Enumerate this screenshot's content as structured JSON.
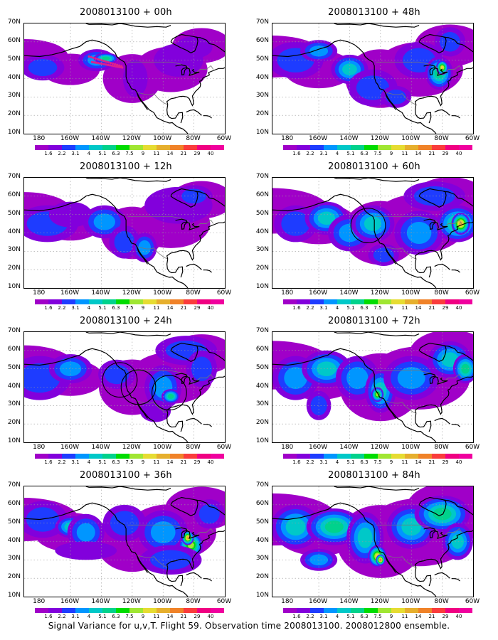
{
  "panels": [
    {
      "title": "2008013100 + 00h",
      "intensity": 0.15,
      "circles": [],
      "dots": true
    },
    {
      "title": "2008013100 + 12h",
      "intensity": 0.22,
      "circles": [],
      "dots": false
    },
    {
      "title": "2008013100 + 24h",
      "intensity": 0.28,
      "circles": [
        "west-coast-1",
        "west-coast-2",
        "east"
      ],
      "dots": false
    },
    {
      "title": "2008013100 + 36h",
      "intensity": 0.38,
      "circles": [],
      "dots": false
    },
    {
      "title": "2008013100 + 48h",
      "intensity": 0.34,
      "circles": [],
      "dots": false
    },
    {
      "title": "2008013100 + 60h",
      "intensity": 0.44,
      "circles": [
        "west-coast-1"
      ],
      "dots": false
    },
    {
      "title": "2008013100 + 72h",
      "intensity": 0.52,
      "circles": [],
      "dots": false
    },
    {
      "title": "2008013100 + 84h",
      "intensity": 0.62,
      "circles": [],
      "dots": false
    }
  ],
  "latitude_labels": [
    "70N",
    "60N",
    "50N",
    "40N",
    "30N",
    "20N",
    "10N"
  ],
  "longitude_labels": [
    "180",
    "160W",
    "140W",
    "120W",
    "100W",
    "80W",
    "60W"
  ],
  "colorbar": {
    "labels": [
      "1.6",
      "2.2",
      "3.1",
      "4",
      "5.1",
      "6.3",
      "7.5",
      "9",
      "11",
      "14",
      "21",
      "29",
      "40"
    ],
    "colors": [
      "#a000c8",
      "#8200dc",
      "#1e3cff",
      "#0096ff",
      "#00c8c8",
      "#00d28c",
      "#00dc00",
      "#a0e632",
      "#e6dc32",
      "#e6af2d",
      "#f08228",
      "#fa3c3c",
      "#f00082",
      "#f0009e"
    ]
  },
  "caption": "Signal Variance for u,v,T. Flight 59. Observation time 2008013100. 2008012800 ensemble."
}
